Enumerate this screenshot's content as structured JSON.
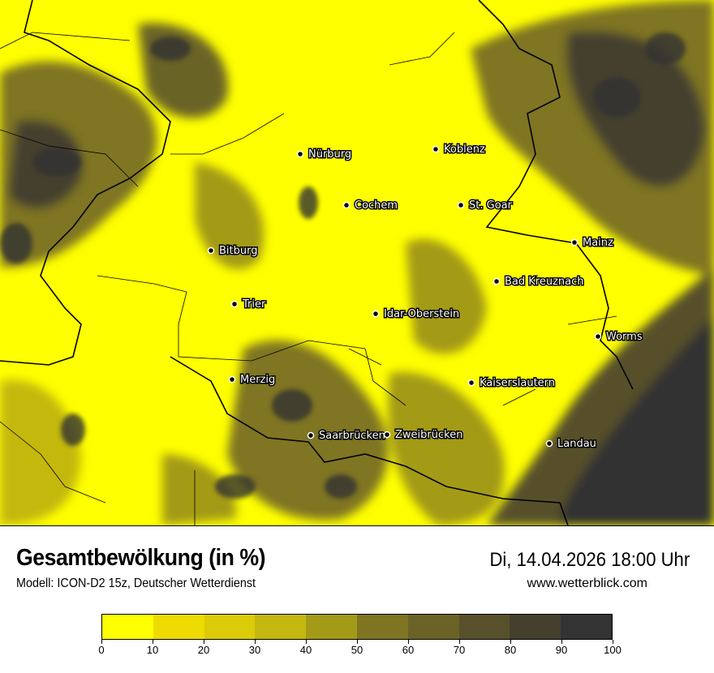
{
  "title": "Gesamtbewölkung (in %)",
  "subtitle": "Modell: ICON-D2 15z, Deutscher Wetterdienst",
  "datetime": "Di, 14.04.2026 18:00 Uhr",
  "website": "www.wetterblick.com",
  "map": {
    "cities": [
      "Nürburg",
      "Koblenz",
      "Cochem",
      "St. Goar",
      "Mainz",
      "Bitburg",
      "Bad Kreuznach",
      "Trier",
      "Idar-Oberstein",
      "Worms",
      "Merzig",
      "Kaiserslautern",
      "Saarbrücken",
      "Zweibrücken",
      "Landau"
    ],
    "background_color": "#ffff00"
  },
  "legend": {
    "ticks": [
      "0",
      "10",
      "20",
      "30",
      "40",
      "50",
      "60",
      "70",
      "80",
      "90",
      "100"
    ],
    "colors": [
      "#ffff00",
      "#eedb00",
      "#dccb08",
      "#c4b810",
      "#a39a18",
      "#7f7422",
      "#6b6326",
      "#57502a",
      "#45402e",
      "#333333"
    ]
  }
}
